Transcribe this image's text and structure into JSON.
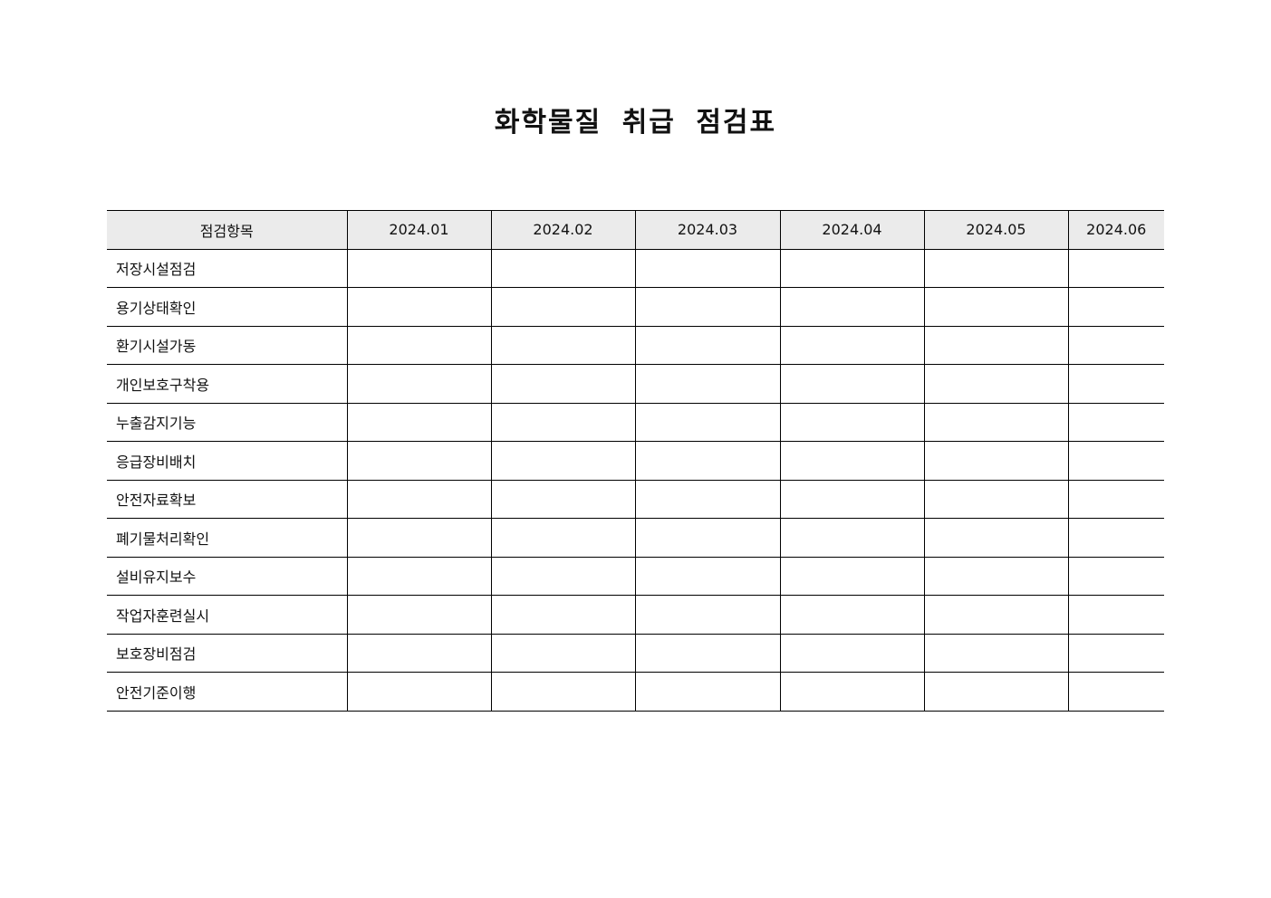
{
  "title": "화학물질 취급 점검표",
  "table": {
    "header_item": "점검항목",
    "months": [
      "2024.01",
      "2024.02",
      "2024.03",
      "2024.04",
      "2024.05",
      "2024.06"
    ],
    "items": [
      "저장시설점검",
      "용기상태확인",
      "환기시설가동",
      "개인보호구착용",
      "누출감지기능",
      "응급장비배치",
      "안전자료확보",
      "폐기물처리확인",
      "설비유지보수",
      "작업자훈련실시",
      "보호장비점검",
      "안전기준이행"
    ]
  },
  "colors": {
    "header_bg": "#ebebeb",
    "border": "#000000"
  }
}
